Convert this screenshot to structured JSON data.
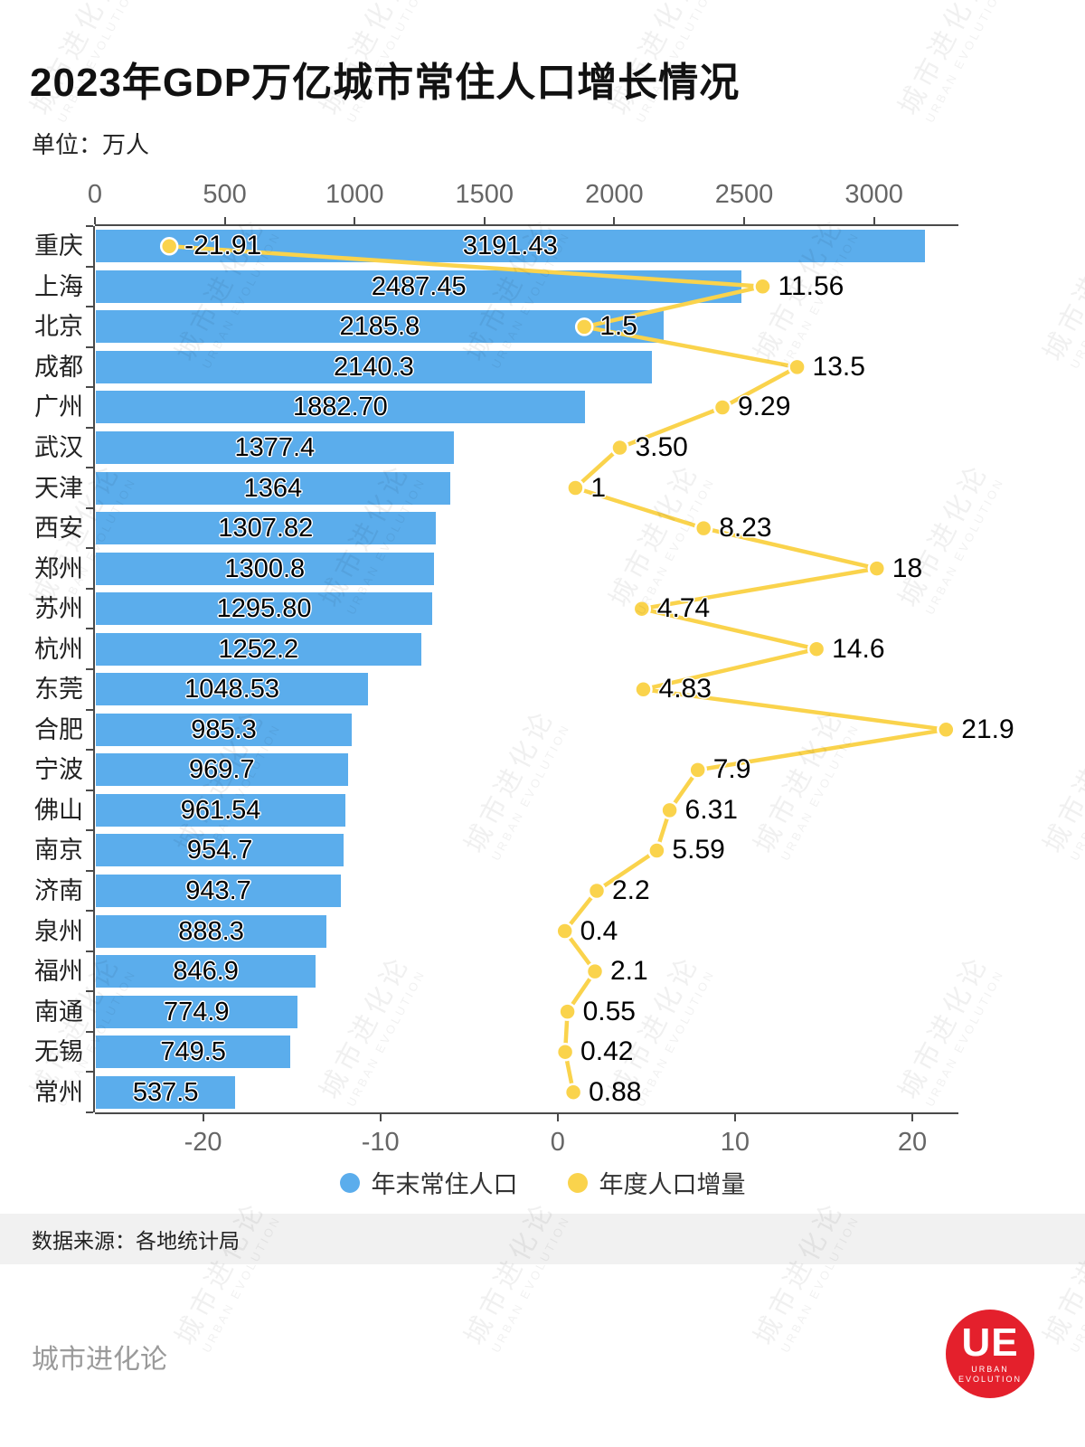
{
  "title": "2023年GDP万亿城市常住人口增长情况",
  "unit_label": "单位：万人",
  "legend": {
    "bar_label": "年末常住人口",
    "line_label": "年度人口增量"
  },
  "source": "数据来源：各地统计局",
  "footer": {
    "brand": "城市进化论"
  },
  "logo": {
    "text": "UE",
    "subtext_top": "URBAN",
    "subtext_bottom": "EVOLUTION"
  },
  "watermark": {
    "zh": "城市进化论",
    "en": "URBAN EVOLUTION"
  },
  "colors": {
    "bar": "#5BADEC",
    "line": "#FAD34C",
    "logo_red": "#E4202C",
    "axis": "#4a4a4a",
    "axis_text": "#666666",
    "label_text": "#111111"
  },
  "chart_data": {
    "type": "bar",
    "orientation": "horizontal",
    "title": "2023年GDP万亿城市常住人口增长情况",
    "unit": "万人",
    "grid": false,
    "legend_position": "bottom",
    "categories": [
      "重庆",
      "上海",
      "北京",
      "成都",
      "广州",
      "武汉",
      "天津",
      "西安",
      "郑州",
      "苏州",
      "杭州",
      "东莞",
      "合肥",
      "宁波",
      "佛山",
      "南京",
      "济南",
      "泉州",
      "福州",
      "南通",
      "无锡",
      "常州"
    ],
    "series": [
      {
        "name": "年末常住人口",
        "type": "bar",
        "values": [
          3191.43,
          2487.45,
          2185.8,
          2140.3,
          1882.7,
          1377.4,
          1364,
          1307.82,
          1300.8,
          1295.8,
          1252.2,
          1048.53,
          985.3,
          969.7,
          961.54,
          954.7,
          943.7,
          888.3,
          846.9,
          774.9,
          749.5,
          537.5
        ],
        "labels": [
          "3191.43",
          "2487.45",
          "2185.8",
          "2140.3",
          "1882.70",
          "1377.4",
          "1364",
          "1307.82",
          "1300.8",
          "1295.80",
          "1252.2",
          "1048.53",
          "985.3",
          "969.7",
          "961.54",
          "954.7",
          "943.7",
          "888.3",
          "846.9",
          "774.9",
          "749.5",
          "537.5"
        ]
      },
      {
        "name": "年度人口增量",
        "type": "line",
        "values": [
          -21.91,
          11.56,
          1.5,
          13.5,
          9.29,
          3.5,
          1,
          8.23,
          18,
          4.74,
          14.6,
          4.83,
          21.9,
          7.9,
          6.31,
          5.59,
          2.2,
          0.4,
          2.1,
          0.55,
          0.42,
          0.88
        ],
        "labels": [
          "-21.91",
          "11.56",
          "1.5",
          "13.5",
          "9.29",
          "3.50",
          "1",
          "8.23",
          "18",
          "4.74",
          "14.6",
          "4.83",
          "21.9",
          "7.9",
          "6.31",
          "5.59",
          "2.2",
          "0.4",
          "2.1",
          "0.55",
          "0.42",
          "0.88"
        ]
      }
    ],
    "top_axis": {
      "ticks": [
        0,
        500,
        1000,
        1500,
        2000,
        2500,
        3000
      ],
      "min": 0,
      "max": 3325
    },
    "bottom_axis": {
      "ticks": [
        -20,
        -10,
        0,
        10,
        20
      ],
      "min": -26.1,
      "max": 22.6
    }
  }
}
